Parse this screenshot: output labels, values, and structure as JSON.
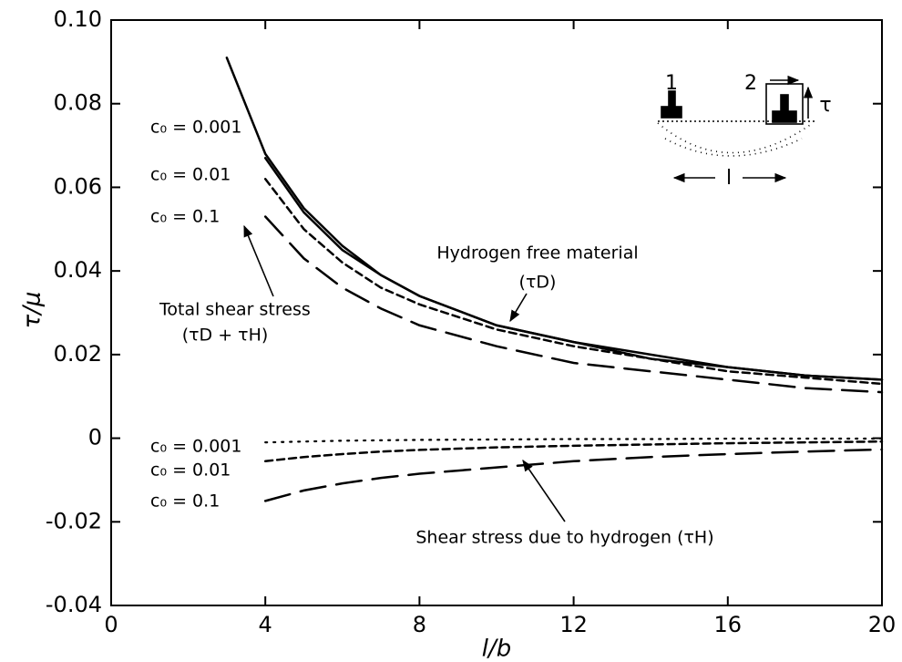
{
  "chart_data": {
    "type": "line",
    "xlabel": "l/b",
    "ylabel": "τ/μ",
    "xlim": [
      0,
      20
    ],
    "xticks": [
      0,
      4,
      8,
      12,
      16,
      20
    ],
    "ylim": [
      -0.04,
      0.1
    ],
    "yticks": [
      {
        "value": 0.1,
        "label": "0.10"
      },
      0.08,
      0.06,
      0.04,
      0.02,
      0,
      -0.02,
      -0.04
    ],
    "grid": false,
    "x": [
      3,
      4,
      5,
      6,
      7,
      8,
      10,
      12,
      14,
      16,
      18,
      20
    ],
    "series": [
      {
        "color": "#000000",
        "dash": "solid",
        "values": [
          0.091,
          0.068,
          0.055,
          0.046,
          0.039,
          0.034,
          0.027,
          0.023,
          0.02,
          0.017,
          0.015,
          0.014
        ]
      },
      {
        "color": "#000000",
        "dash": "solid",
        "values": [
          null,
          0.067,
          0.054,
          0.045,
          0.039,
          0.034,
          0.027,
          0.023,
          0.019,
          0.017,
          0.015,
          0.014
        ]
      },
      {
        "color": "#000000",
        "dash": "short-dash",
        "values": [
          null,
          0.062,
          0.05,
          0.042,
          0.036,
          0.032,
          0.026,
          0.022,
          0.019,
          0.016,
          0.0145,
          0.013
        ]
      },
      {
        "color": "#000000",
        "dash": "long-dash",
        "values": [
          null,
          0.053,
          0.043,
          0.036,
          0.031,
          0.027,
          0.022,
          0.018,
          0.016,
          0.014,
          0.012,
          0.011
        ]
      },
      {
        "color": "#000000",
        "dash": "dotted",
        "values": [
          null,
          -0.001,
          -0.0008,
          -0.0006,
          -0.0005,
          -0.0004,
          -0.0003,
          -0.0002,
          -0.0002,
          -0.0001,
          -0.0001,
          -0.0001
        ]
      },
      {
        "color": "#000000",
        "dash": "short-dash",
        "values": [
          null,
          -0.0055,
          -0.0045,
          -0.0038,
          -0.0032,
          -0.0028,
          -0.0022,
          -0.0018,
          -0.0015,
          -0.0012,
          -0.001,
          -0.0008
        ]
      },
      {
        "color": "#000000",
        "dash": "long-dash",
        "values": [
          null,
          -0.015,
          -0.0125,
          -0.0108,
          -0.0095,
          -0.0085,
          -0.007,
          -0.0055,
          -0.0045,
          -0.0038,
          -0.0032,
          -0.0027
        ]
      }
    ],
    "annotations": [
      "c₀ = 0.001",
      "c₀ = 0.01",
      "c₀ = 0.1",
      "Total shear stress",
      "(τD + τH)",
      "Hydrogen free material",
      "(τD)",
      "c₀ = 0.001",
      "c₀ = 0.01",
      "c₀ = 0.1",
      "Shear stress due to hydrogen (τH)"
    ],
    "inset_labels": [
      "1",
      "2",
      "τ",
      "l"
    ]
  }
}
